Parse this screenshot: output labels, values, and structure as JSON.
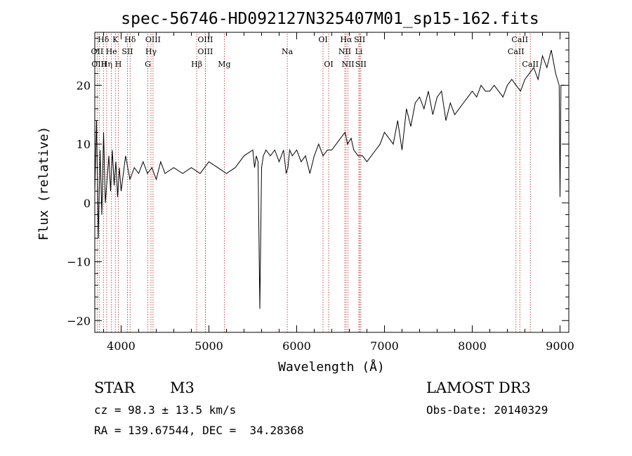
{
  "colors": {
    "spectrum": "#000000",
    "lines": "#b22222",
    "axes": "#000000"
  },
  "chart_data": {
    "type": "line",
    "title": "spec-56746-HD092127N325407M01_sp15-162.fits",
    "xlabel": "Wavelength (Å)",
    "ylabel": "Flux (relative)",
    "xlim": [
      3700,
      9100
    ],
    "ylim": [
      -22,
      29
    ],
    "xticks": [
      4000,
      5000,
      6000,
      7000,
      8000,
      9000
    ],
    "yticks": [
      -20,
      -10,
      0,
      10,
      20
    ],
    "x_minor_step": 200,
    "y_minor_step": 2,
    "series": [
      {
        "name": "spectrum",
        "x": [
          3700,
          3720,
          3740,
          3760,
          3780,
          3800,
          3820,
          3840,
          3860,
          3880,
          3900,
          3920,
          3940,
          3960,
          3980,
          4000,
          4050,
          4100,
          4150,
          4200,
          4250,
          4300,
          4350,
          4400,
          4450,
          4500,
          4600,
          4700,
          4800,
          4900,
          5000,
          5100,
          5200,
          5300,
          5400,
          5500,
          5520,
          5540,
          5560,
          5580,
          5600,
          5620,
          5650,
          5700,
          5750,
          5800,
          5850,
          5880,
          5900,
          5920,
          5950,
          6000,
          6050,
          6100,
          6150,
          6200,
          6250,
          6300,
          6350,
          6400,
          6450,
          6500,
          6550,
          6580,
          6620,
          6650,
          6700,
          6750,
          6800,
          6850,
          6900,
          6950,
          7000,
          7050,
          7100,
          7150,
          7200,
          7250,
          7300,
          7350,
          7400,
          7450,
          7500,
          7550,
          7600,
          7650,
          7700,
          7750,
          7800,
          7850,
          7900,
          7950,
          8000,
          8050,
          8100,
          8150,
          8200,
          8250,
          8300,
          8350,
          8400,
          8450,
          8500,
          8550,
          8600,
          8650,
          8700,
          8750,
          8800,
          8850,
          8900,
          8950,
          8990,
          9000,
          9010,
          9050
        ],
        "y": [
          2,
          14,
          -6,
          9,
          -2,
          12,
          0,
          4,
          8,
          2,
          9,
          3,
          7,
          1,
          6,
          2,
          8,
          4,
          6,
          5,
          7,
          5,
          6,
          4,
          7,
          5,
          6,
          5,
          6,
          5,
          7,
          6,
          5,
          6,
          8,
          9,
          6,
          8,
          7,
          -18,
          6,
          8,
          9,
          8,
          9,
          7,
          9,
          5,
          6,
          9,
          8,
          9,
          7,
          8,
          5,
          8,
          10,
          8,
          9,
          9,
          10,
          11,
          12,
          10,
          11,
          9,
          8,
          8,
          7,
          8,
          9,
          10,
          12,
          11,
          10,
          14,
          9,
          16,
          13,
          17,
          18,
          16,
          19,
          15,
          18,
          19,
          14,
          17,
          15,
          16,
          17,
          18,
          19,
          18,
          20,
          19,
          19,
          20,
          19,
          18,
          20,
          21,
          20,
          19,
          21,
          22,
          23,
          21,
          25,
          23,
          26,
          22,
          20,
          1,
          20,
          20
        ]
      }
    ],
    "spectral_lines": [
      {
        "name": "Hδ",
        "wavelength": 3798,
        "tier": 0
      },
      {
        "name": "K",
        "wavelength": 3934,
        "tier": 0
      },
      {
        "name": "Hδ",
        "wavelength": 4102,
        "tier": 0
      },
      {
        "name": "OIII",
        "wavelength": 4363,
        "tier": 0
      },
      {
        "name": "OIII",
        "wavelength": 4959,
        "tier": 0
      },
      {
        "name": "OI",
        "wavelength": 6300,
        "tier": 0
      },
      {
        "name": "Hα",
        "wavelength": 6563,
        "tier": 0
      },
      {
        "name": "SII",
        "wavelength": 6717,
        "tier": 0
      },
      {
        "name": "CaII",
        "wavelength": 8542,
        "tier": 0
      },
      {
        "name": "OII",
        "wavelength": 3727,
        "tier": 1
      },
      {
        "name": "He",
        "wavelength": 3889,
        "tier": 1
      },
      {
        "name": "SII",
        "wavelength": 4072,
        "tier": 1
      },
      {
        "name": "Hγ",
        "wavelength": 4340,
        "tier": 1
      },
      {
        "name": "OIII",
        "wavelength": 4959,
        "tier": 1
      },
      {
        "name": "Na",
        "wavelength": 5893,
        "tier": 1
      },
      {
        "name": "NII",
        "wavelength": 6548,
        "tier": 1
      },
      {
        "name": "Li",
        "wavelength": 6708,
        "tier": 1
      },
      {
        "name": "CaII",
        "wavelength": 8498,
        "tier": 1
      },
      {
        "name": "OIII",
        "wavelength": 3750,
        "tier": 2
      },
      {
        "name": "Hη",
        "wavelength": 3835,
        "tier": 2
      },
      {
        "name": "H",
        "wavelength": 3968,
        "tier": 2
      },
      {
        "name": "G",
        "wavelength": 4304,
        "tier": 2
      },
      {
        "name": "Hβ",
        "wavelength": 4861,
        "tier": 2
      },
      {
        "name": "Mg",
        "wavelength": 5175,
        "tier": 2
      },
      {
        "name": "OI",
        "wavelength": 6364,
        "tier": 2
      },
      {
        "name": "NII",
        "wavelength": 6584,
        "tier": 2
      },
      {
        "name": "SII",
        "wavelength": 6731,
        "tier": 2
      },
      {
        "name": "CaII",
        "wavelength": 8662,
        "tier": 2
      }
    ]
  },
  "info": {
    "object_type": "STAR",
    "subclass": "M3",
    "survey": "LAMOST DR3",
    "cz": "cz = 98.3 ± 13.5 km/s",
    "obs_date": "Obs-Date: 20140329",
    "coords": "RA = 139.67544, DEC =  34.28368"
  }
}
